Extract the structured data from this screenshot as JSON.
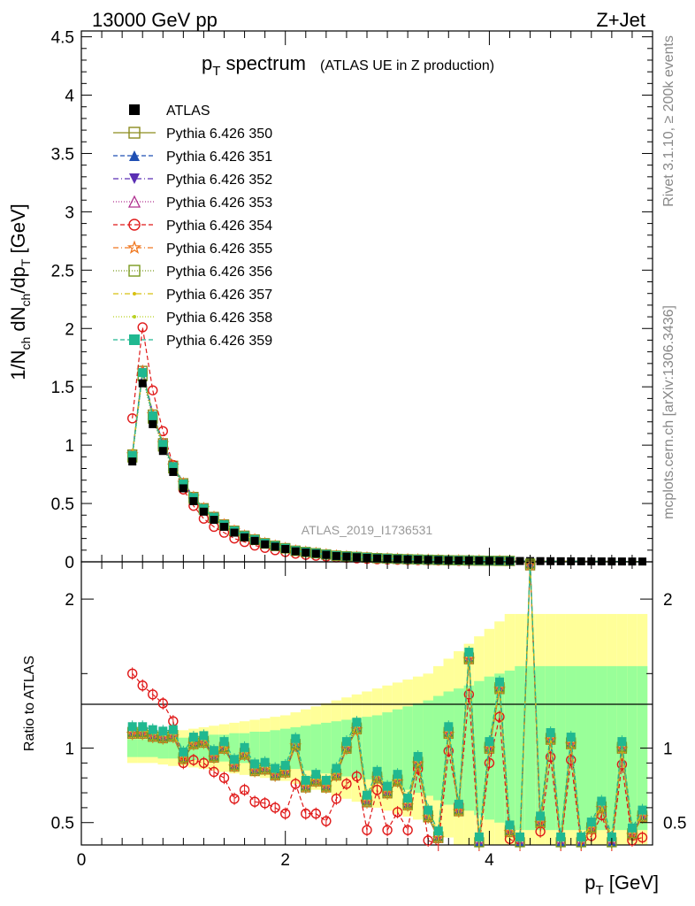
{
  "header": {
    "left_label": "13000 GeV pp",
    "right_label": "Z+Jet"
  },
  "side_labels": {
    "rivet": "Rivet 3.1.10, ≥ 200k events",
    "mcplots": "mcplots.cern.ch [arXiv:1306.3436]"
  },
  "chart_data": [
    {
      "type": "line",
      "panel": "main",
      "title_main": "p",
      "title_sub": "T",
      "title_rest": " spectrum",
      "title_note": "(ATLAS UE in Z production)",
      "watermark": "ATLAS_2019_I1736531",
      "ylabel_parts": [
        "1/N",
        "ch",
        " dN",
        "ch",
        "/dp",
        "T",
        " [GeV]"
      ],
      "ylim": [
        0,
        4.55
      ],
      "xlim": [
        0,
        5.6
      ],
      "yticks": [
        0,
        0.5,
        1,
        1.5,
        2,
        2.5,
        3,
        3.5,
        4,
        4.5
      ],
      "ytick_labels": [
        "0",
        "0.5",
        "1",
        "1.5",
        "2",
        "2.5",
        "3",
        "3.5",
        "4",
        "4.5"
      ],
      "data_x": [
        0.5,
        0.6,
        0.7,
        0.8,
        0.9,
        1.0,
        1.1,
        1.2,
        1.3,
        1.4,
        1.5,
        1.6,
        1.7,
        1.8,
        1.9,
        2.0,
        2.1,
        2.2,
        2.3,
        2.4,
        2.5,
        2.6,
        2.7,
        2.8,
        2.9,
        3.0,
        3.1,
        3.2,
        3.3,
        3.4,
        3.5,
        3.6,
        3.7,
        3.8,
        3.9,
        4.0,
        4.1,
        4.2,
        4.3,
        4.4,
        4.5,
        4.6,
        4.7,
        4.8,
        4.9,
        5.0,
        5.1,
        5.2,
        5.3,
        5.4,
        5.5
      ],
      "data_y": [
        0.86,
        1.53,
        1.18,
        0.95,
        0.77,
        0.63,
        0.52,
        0.43,
        0.36,
        0.3,
        0.25,
        0.21,
        0.18,
        0.15,
        0.13,
        0.11,
        0.09,
        0.08,
        0.07,
        0.06,
        0.05,
        0.045,
        0.04,
        0.035,
        0.03,
        0.027,
        0.024,
        0.021,
        0.019,
        0.017,
        0.015,
        0.013,
        0.012,
        0.011,
        0.01,
        0.009,
        0.008,
        0.0075,
        0.007,
        0.0065,
        0.006,
        0.0055,
        0.005,
        0.0046,
        0.0042,
        0.0039,
        0.0036,
        0.0033,
        0.003,
        0.0028,
        0.0026
      ],
      "legend": [
        {
          "label": "ATLAS",
          "color": "#000000",
          "marker": "filled-square",
          "dash": "none"
        },
        {
          "label": "Pythia 6.426 350",
          "color": "#8c8c1f",
          "marker": "open-square",
          "dash": "solid"
        },
        {
          "label": "Pythia 6.426 351",
          "color": "#1f4fb3",
          "marker": "filled-triangle-up",
          "dash": "dashed"
        },
        {
          "label": "Pythia 6.426 352",
          "color": "#5a2fb3",
          "marker": "filled-triangle-down",
          "dash": "dashdot"
        },
        {
          "label": "Pythia 6.426 353",
          "color": "#b0308f",
          "marker": "open-triangle-up",
          "dash": "dotted"
        },
        {
          "label": "Pythia 6.426 354",
          "color": "#e01818",
          "marker": "open-circle",
          "dash": "dashed"
        },
        {
          "label": "Pythia 6.426 355",
          "color": "#f07820",
          "marker": "open-star",
          "dash": "dashdot"
        },
        {
          "label": "Pythia 6.426 356",
          "color": "#7a9a1f",
          "marker": "open-square",
          "dash": "dotted"
        },
        {
          "label": "Pythia 6.426 357",
          "color": "#d8c010",
          "marker": "small-dot",
          "dash": "dashdot"
        },
        {
          "label": "Pythia 6.426 358",
          "color": "#b8d020",
          "marker": "small-dot",
          "dash": "dotted"
        },
        {
          "label": "Pythia 6.426 359",
          "color": "#20b890",
          "marker": "filled-square",
          "dash": "dashed"
        }
      ],
      "series_scale": [
        1.07,
        1.08,
        1.06,
        1.07,
        1.07,
        1.07,
        1.04,
        1.07,
        1.07,
        1.06
      ],
      "series_354_y": [
        1.23,
        2.01,
        1.47,
        1.12,
        0.83,
        0.62,
        0.48,
        0.37,
        0.3,
        0.25,
        0.2,
        0.17,
        0.14,
        0.12,
        0.1,
        0.085,
        0.07
      ]
    },
    {
      "type": "line",
      "panel": "ratio",
      "ylabel": "Ratio to ATLAS",
      "xlabel_main": "p",
      "xlabel_sub": "T",
      "xlabel_rest": " [GeV]",
      "ylim": [
        0.35,
        2.25
      ],
      "xlim": [
        0,
        5.6
      ],
      "yticks": [
        0.5,
        1,
        2
      ],
      "ytick_labels": [
        "0.5",
        "1",
        "2"
      ],
      "xticks": [
        0,
        2,
        4
      ],
      "xtick_labels": [
        "0",
        "2",
        "4"
      ],
      "x": [
        0.5,
        0.6,
        0.7,
        0.8,
        0.9,
        1.0,
        1.1,
        1.2,
        1.3,
        1.4,
        1.5,
        1.6,
        1.7,
        1.8,
        1.9,
        2.0,
        2.1,
        2.2,
        2.3,
        2.4,
        2.5,
        2.6,
        2.7,
        2.8,
        2.9,
        3.0,
        3.1,
        3.2,
        3.3,
        3.4,
        3.5,
        3.6,
        3.7,
        3.8,
        3.9,
        4.0,
        4.1,
        4.2,
        4.3,
        4.4,
        4.5,
        4.6,
        4.7,
        4.8,
        4.9,
        5.0,
        5.1,
        5.2,
        5.3,
        5.4,
        5.5
      ],
      "band_green": [
        0.06,
        0.06,
        0.06,
        0.07,
        0.07,
        0.07,
        0.08,
        0.08,
        0.09,
        0.09,
        0.1,
        0.1,
        0.11,
        0.11,
        0.12,
        0.13,
        0.14,
        0.15,
        0.16,
        0.17,
        0.18,
        0.19,
        0.2,
        0.21,
        0.22,
        0.24,
        0.26,
        0.28,
        0.3,
        0.32,
        0.35,
        0.38,
        0.4,
        0.42,
        0.45,
        0.48,
        0.5,
        0.52,
        0.55,
        0.55,
        0.55,
        0.55,
        0.55,
        0.55,
        0.55,
        0.55,
        0.55,
        0.55,
        0.55,
        0.55,
        0.55
      ],
      "band_yellow": [
        0.1,
        0.1,
        0.1,
        0.11,
        0.12,
        0.12,
        0.13,
        0.14,
        0.15,
        0.16,
        0.17,
        0.18,
        0.19,
        0.2,
        0.21,
        0.22,
        0.24,
        0.26,
        0.28,
        0.3,
        0.32,
        0.34,
        0.36,
        0.38,
        0.4,
        0.42,
        0.44,
        0.46,
        0.48,
        0.5,
        0.55,
        0.6,
        0.65,
        0.7,
        0.75,
        0.8,
        0.85,
        0.9,
        0.9,
        0.9,
        0.9,
        0.9,
        0.9,
        0.9,
        0.9,
        0.9,
        0.9,
        0.9,
        0.9,
        0.9,
        0.9
      ],
      "ratio_354": [
        1.5,
        1.42,
        1.36,
        1.3,
        1.18,
        0.9,
        0.92,
        0.9,
        0.84,
        0.8,
        0.66,
        0.72,
        0.64,
        0.63,
        0.6,
        0.56,
        0.76,
        0.56,
        0.56,
        0.51,
        0.66,
        0.76,
        0.81,
        0.45,
        0.72,
        0.45,
        0.57,
        0.45,
        0.86,
        0.38,
        0.34,
        0.98,
        0.62,
        1.36,
        0.33,
        0.9,
        1.21,
        0.39,
        0.33,
        2.25,
        0.44,
        0.94,
        0.33,
        0.92,
        0.33,
        0.41,
        0.55,
        0.33,
        0.89,
        0.38,
        0.4
      ],
      "ratio_other": [
        1.12,
        1.12,
        1.1,
        1.09,
        1.1,
        0.95,
        1.05,
        1.06,
        0.96,
        1.02,
        0.9,
        0.98,
        0.87,
        0.88,
        0.84,
        0.86,
        1.04,
        0.76,
        0.8,
        0.76,
        0.84,
        1.02,
        1.15,
        0.66,
        0.82,
        0.72,
        0.8,
        0.64,
        0.92,
        0.56,
        0.42,
        1.12,
        0.6,
        1.62,
        0.38,
        1.02,
        1.42,
        0.46,
        0.38,
        2.25,
        0.52,
        1.08,
        0.38,
        1.05,
        0.38,
        0.48,
        0.62,
        0.38,
        1.02,
        0.44,
        0.56
      ]
    }
  ]
}
